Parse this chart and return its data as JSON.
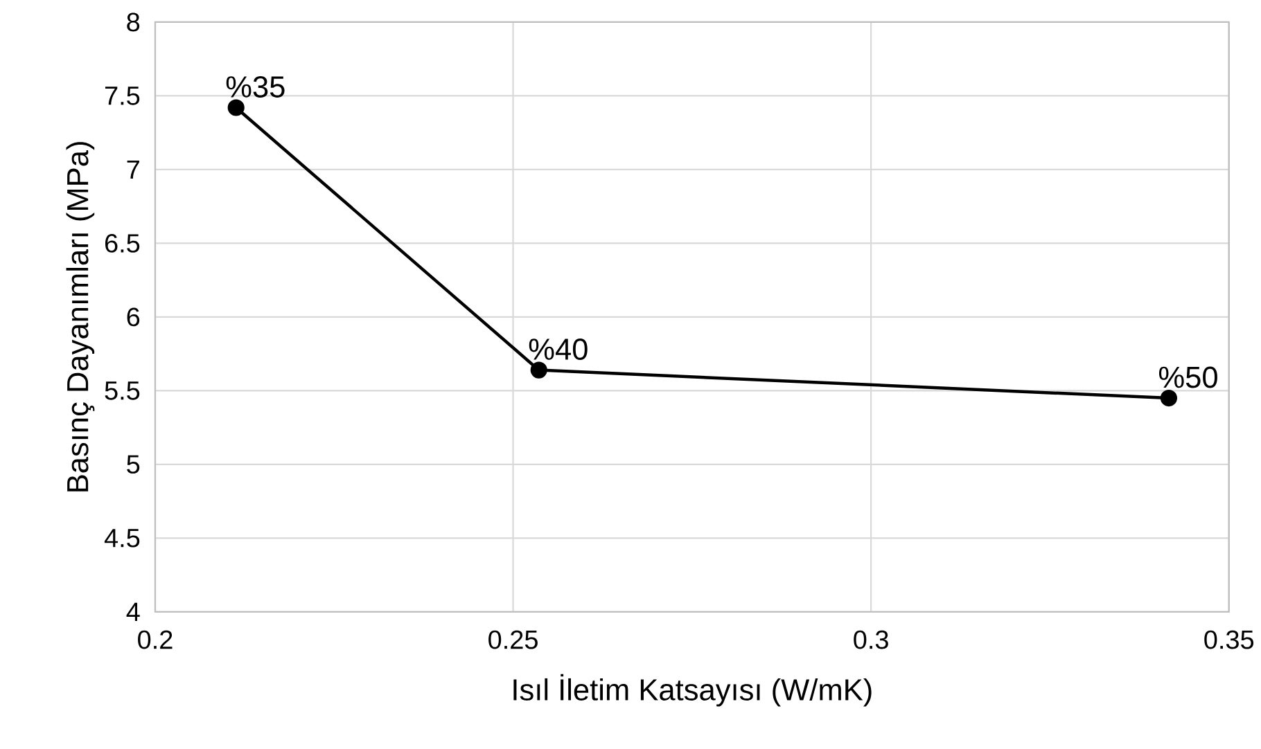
{
  "chart_data": {
    "type": "line",
    "xlabel": "Isıl İletim Katsayısı (W/mK)",
    "ylabel": "Basınç Dayanımları (MPa)",
    "x": [
      0.2113,
      0.2536,
      0.3416
    ],
    "series": [
      {
        "color": "#000000",
        "values": [
          7.42,
          5.64,
          5.45
        ]
      }
    ],
    "annotations": [
      {
        "text": "%35",
        "x": 0.2113,
        "y": 7.42
      },
      {
        "text": "%40",
        "x": 0.2536,
        "y": 5.64
      },
      {
        "text": "%50",
        "x": 0.3416,
        "y": 5.45
      }
    ],
    "xlim": [
      0.2,
      0.35
    ],
    "ylim": [
      4,
      8
    ],
    "xticks": [
      0.2,
      0.25,
      0.3,
      0.35
    ],
    "yticks": [
      4,
      4.5,
      5,
      5.5,
      6,
      6.5,
      7,
      7.5,
      8
    ],
    "grid": true,
    "marker": "circle",
    "line_style": "solid"
  }
}
